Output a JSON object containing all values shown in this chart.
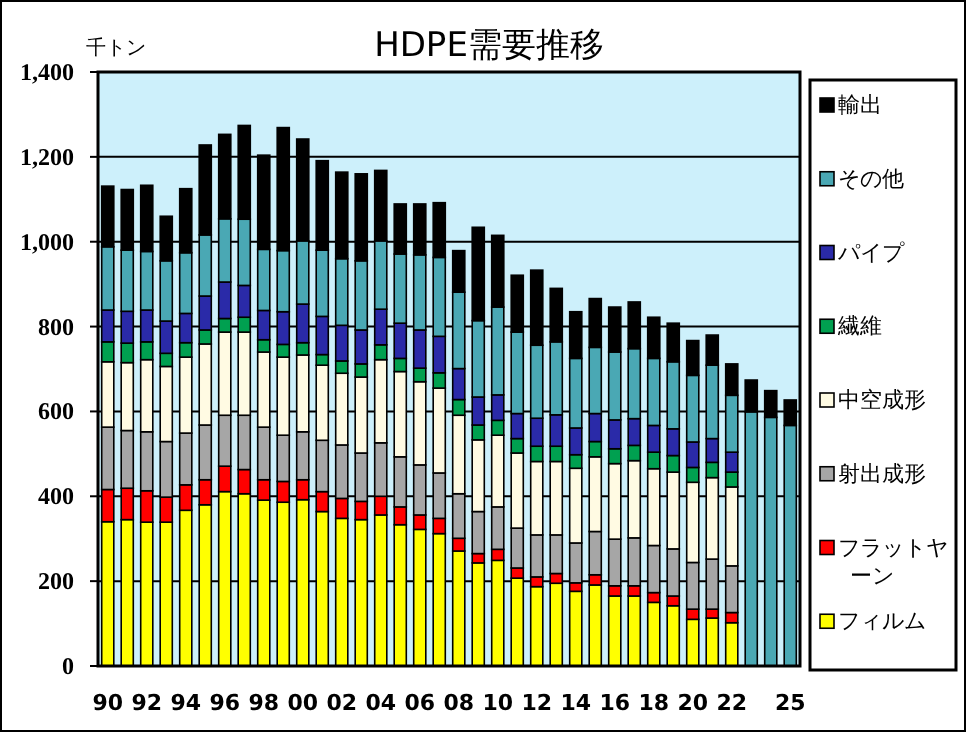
{
  "chart_data": {
    "type": "bar",
    "stacked": true,
    "title": "HDPE需要推移",
    "ylabel": "千トン",
    "categories": [
      "90",
      null,
      "92",
      null,
      "94",
      null,
      "96",
      null,
      "98",
      null,
      "00",
      null,
      "02",
      null,
      "04",
      null,
      "06",
      null,
      "08",
      null,
      "10",
      null,
      "12",
      null,
      "14",
      null,
      "16",
      null,
      "18",
      null,
      "20",
      null,
      "22",
      null,
      null,
      "25"
    ],
    "ylim": [
      0,
      1400
    ],
    "yticks": [
      0,
      200,
      400,
      600,
      800,
      {
        "value": 1000,
        "label": "1,000"
      },
      {
        "value": 1200,
        "label": "1,200"
      },
      {
        "value": 1400,
        "label": "1,400"
      }
    ],
    "grid": "y",
    "legend": "right",
    "series": [
      {
        "name": "フィルム",
        "color": "#ffff00",
        "values": [
          340,
          345,
          339,
          339,
          367,
          380,
          411,
          406,
          391,
          386,
          392,
          364,
          348,
          345,
          356,
          333,
          322,
          312,
          271,
          243,
          249,
          207,
          187,
          195,
          176,
          191,
          165,
          165,
          150,
          142,
          110,
          113,
          102,
          null,
          null,
          null
        ]
      },
      {
        "name": "フラットヤーン",
        "color": "#ff0000",
        "values": [
          76,
          74,
          74,
          59,
          60,
          59,
          60,
          57,
          48,
          49,
          47,
          47,
          47,
          43,
          44,
          42,
          34,
          36,
          30,
          22,
          26,
          24,
          23,
          23,
          20,
          24,
          24,
          24,
          23,
          23,
          24,
          21,
          24,
          null,
          null,
          null
        ]
      },
      {
        "name": "射出成形",
        "color": "#a6a6a6",
        "values": [
          147,
          136,
          139,
          131,
          122,
          129,
          120,
          128,
          124,
          109,
          113,
          121,
          126,
          114,
          126,
          118,
          118,
          107,
          105,
          99,
          100,
          94,
          99,
          91,
          94,
          102,
          110,
          113,
          111,
          111,
          110,
          118,
          110,
          null,
          null,
          null
        ]
      },
      {
        "name": "中空成形",
        "color": "#fffbe3",
        "values": [
          154,
          160,
          170,
          177,
          179,
          191,
          196,
          196,
          177,
          184,
          181,
          177,
          169,
          179,
          196,
          201,
          196,
          200,
          185,
          169,
          169,
          177,
          173,
          173,
          176,
          176,
          178,
          182,
          181,
          181,
          189,
          192,
          186,
          null,
          null,
          null
        ]
      },
      {
        "name": "繊維",
        "color": "#00a050",
        "values": [
          47,
          46,
          42,
          31,
          34,
          33,
          32,
          35,
          29,
          30,
          29,
          25,
          29,
          31,
          35,
          31,
          32,
          36,
          37,
          35,
          35,
          34,
          36,
          36,
          32,
          36,
          35,
          36,
          39,
          39,
          35,
          36,
          35,
          null,
          null,
          null
        ]
      },
      {
        "name": "パイプ",
        "color": "#2a2aa8",
        "values": [
          75,
          75,
          75,
          76,
          69,
          80,
          86,
          75,
          69,
          77,
          91,
          90,
          84,
          80,
          84,
          83,
          90,
          86,
          73,
          66,
          60,
          59,
          66,
          74,
          63,
          66,
          68,
          63,
          63,
          63,
          60,
          56,
          47,
          null,
          null,
          null
        ]
      },
      {
        "name": "その他",
        "color": "#4aa8b4",
        "values": [
          149,
          144,
          138,
          142,
          143,
          144,
          149,
          156,
          144,
          144,
          149,
          156,
          157,
          163,
          161,
          163,
          177,
          186,
          180,
          180,
          207,
          192,
          172,
          172,
          164,
          156,
          160,
          165,
          158,
          158,
          157,
          173,
          134,
          599,
          586,
          567
        ]
      },
      {
        "name": "輸出",
        "color": "#000000",
        "values": [
          143,
          143,
          156,
          105,
          151,
          212,
          199,
          221,
          222,
          290,
          240,
          211,
          204,
          205,
          166,
          118,
          120,
          129,
          98,
          220,
          169,
          134,
          177,
          126,
          110,
          115,
          106,
          110,
          97,
          91,
          82,
          71,
          74,
          75,
          63,
          60
        ]
      }
    ]
  }
}
